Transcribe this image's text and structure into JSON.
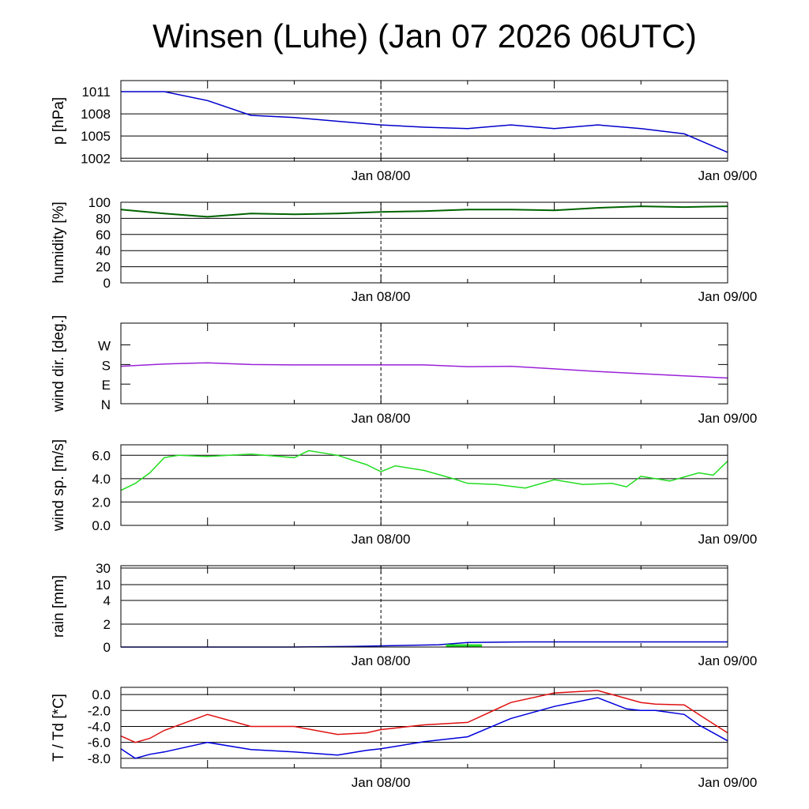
{
  "title": "Winsen (Luhe) (Jan 07 2026 06UTC)",
  "colors": {
    "pressure": "#0000cc",
    "humidity": "#006400",
    "wind_dir": "#9a21d8",
    "wind_speed": "#22dd22",
    "rain_total": "#0000cc",
    "rain_interval": "#22dd22",
    "temperature": "#e01010",
    "dewpoint": "#0000dd"
  },
  "chart_data": [
    {
      "type": "line",
      "name": "pressure",
      "ylabel": "p [hPa]",
      "ylim": [
        1001.6,
        1012.5
      ],
      "yticks": [
        1002,
        1005,
        1008,
        1011
      ],
      "xlabels": [
        "Jan 08/00",
        "Jan 09/00"
      ],
      "x_hours": [
        6,
        9,
        12,
        15,
        18,
        21,
        24,
        27,
        30,
        33,
        36,
        39,
        42,
        45,
        48
      ],
      "series": [
        {
          "values": [
            1011,
            1011,
            1009.8,
            1007.8,
            1007.5,
            1007,
            1006.5,
            1006.2,
            1006,
            1006.5,
            1006,
            1006.5,
            1006,
            1005.3,
            1002.8
          ]
        }
      ]
    },
    {
      "type": "line",
      "name": "humidity",
      "ylabel": "humidity [%]",
      "ylim": [
        0,
        100
      ],
      "yticks": [
        0,
        20,
        40,
        60,
        80,
        100
      ],
      "xlabels": [
        "Jan 08/00",
        "Jan 09/00"
      ],
      "x_hours": [
        6,
        9,
        12,
        15,
        18,
        21,
        24,
        27,
        30,
        33,
        36,
        39,
        42,
        45,
        48
      ],
      "series": [
        {
          "values": [
            91,
            86,
            82,
            86,
            85,
            86,
            88,
            89,
            91,
            91,
            90,
            93,
            95,
            94,
            95
          ]
        }
      ]
    },
    {
      "type": "line",
      "name": "wind_dir",
      "ylabel": "wind dir. [deg.]",
      "ylim": [
        0,
        370
      ],
      "ytick_labels": [
        {
          "value": 0,
          "label": "N"
        },
        {
          "value": 90,
          "label": "E"
        },
        {
          "value": 180,
          "label": "S"
        },
        {
          "value": 270,
          "label": "W"
        }
      ],
      "xlabels": [
        "Jan 08/00",
        "Jan 09/00"
      ],
      "x_hours": [
        6,
        9,
        12,
        15,
        18,
        21,
        24,
        27,
        30,
        33,
        36,
        39,
        42,
        45,
        48
      ],
      "series": [
        {
          "values": [
            172,
            182,
            188,
            180,
            178,
            178,
            178,
            178,
            170,
            172,
            160,
            148,
            138,
            128,
            118
          ]
        }
      ]
    },
    {
      "type": "line",
      "name": "wind_speed",
      "ylabel": "wind sp. [m/s]",
      "ylim": [
        0,
        6.9
      ],
      "yticks": [
        0,
        2,
        4,
        6
      ],
      "ytick_labels_text": [
        "0.0",
        "2.0",
        "4.0",
        "6.0"
      ],
      "xlabels": [
        "Jan 08/00",
        "Jan 09/00"
      ],
      "x_hours": [
        6,
        7,
        8,
        9,
        10,
        12,
        15,
        18,
        19,
        21,
        23,
        24,
        25,
        27,
        29,
        30,
        32,
        34,
        36,
        38,
        40,
        41,
        42,
        44,
        46,
        47,
        48
      ],
      "series": [
        {
          "values": [
            3.0,
            3.6,
            4.5,
            5.8,
            6.0,
            5.9,
            6.1,
            5.8,
            6.4,
            6.0,
            5.2,
            4.6,
            5.1,
            4.7,
            4.0,
            3.6,
            3.5,
            3.2,
            3.9,
            3.5,
            3.6,
            3.3,
            4.2,
            3.8,
            4.5,
            4.3,
            5.5
          ]
        }
      ]
    },
    {
      "type": "area",
      "name": "rain",
      "ylabel": "rain [mm]",
      "yticks": [
        0,
        2,
        4,
        10,
        30
      ],
      "ytick_labels_text": [
        "0",
        "2",
        "4",
        "10",
        "30"
      ],
      "xlabels": [
        "Jan 08/00",
        "Jan 09/00"
      ],
      "x_hours": [
        6,
        18,
        22,
        24,
        28,
        30,
        34,
        48
      ],
      "series": [
        {
          "values": [
            0,
            0,
            0.05,
            0.1,
            0.2,
            0.4,
            0.45,
            0.45
          ]
        },
        {
          "type": "bar",
          "x_start_hour": 28.5,
          "x_end_hour": 31,
          "values": [
            0.15
          ]
        }
      ]
    },
    {
      "type": "line",
      "name": "temperature",
      "ylabel": "T / Td [*C]",
      "ylim": [
        -9.2,
        0.9
      ],
      "yticks": [
        0,
        -2,
        -4,
        -6,
        -8
      ],
      "ytick_labels_text": [
        "0.0",
        "-2.0",
        "-4.0",
        "-6.0",
        "-8.0"
      ],
      "xlabels": [
        "Jan 08/00",
        "Jan 09/00"
      ],
      "x_hours": [
        6,
        7,
        8,
        9,
        12,
        15,
        18,
        21,
        23,
        24,
        27,
        30,
        33,
        36,
        39,
        41,
        42,
        43,
        45,
        46,
        48
      ],
      "series": [
        {
          "values": [
            -5.2,
            -6.0,
            -5.5,
            -4.5,
            -2.5,
            -4.0,
            -4.0,
            -5.0,
            -4.8,
            -4.4,
            -3.8,
            -3.5,
            -1.0,
            0.2,
            0.5,
            -0.5,
            -1.0,
            -1.2,
            -1.3,
            -2.5,
            -4.8
          ]
        },
        {
          "values": [
            -6.8,
            -8.0,
            -7.5,
            -7.2,
            -6.0,
            -6.9,
            -7.2,
            -7.6,
            -7.0,
            -6.8,
            -5.9,
            -5.3,
            -3.0,
            -1.5,
            -0.4,
            -1.8,
            -2.0,
            -2.0,
            -2.5,
            -3.8,
            -5.8
          ]
        }
      ]
    }
  ]
}
